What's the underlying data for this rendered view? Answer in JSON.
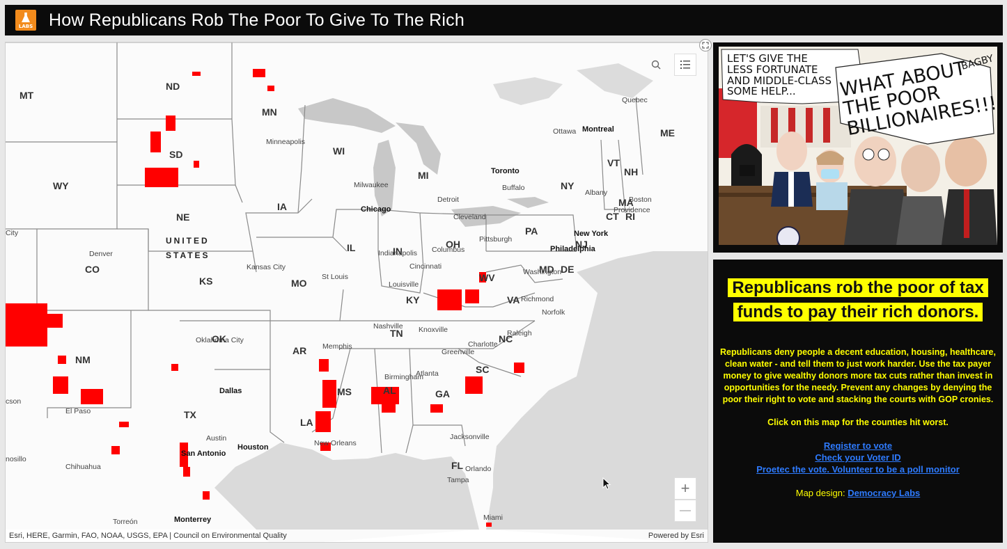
{
  "header": {
    "title": "How Republicans Rob The Poor To Give To The Rich",
    "logo_text": "LABS"
  },
  "map": {
    "country_label": [
      "UNITED",
      "STATES"
    ],
    "states": [
      "MT",
      "ND",
      "MN",
      "WY",
      "SD",
      "WI",
      "MI",
      "NY",
      "VT",
      "NH",
      "ME",
      "MA",
      "CT",
      "RI",
      "NJ",
      "NE",
      "IA",
      "PA",
      "IL",
      "IN",
      "OH",
      "MD",
      "DE",
      "CO",
      "KS",
      "MO",
      "KY",
      "WV",
      "VA",
      "OK",
      "AR",
      "TN",
      "NC",
      "SC",
      "NM",
      "TX",
      "MS",
      "AL",
      "GA",
      "LA",
      "FL"
    ],
    "cities": [
      "Quebec",
      "Ottawa",
      "Montreal",
      "Minneapolis",
      "Toronto",
      "Buffalo",
      "Albany",
      "Boston",
      "Providence",
      "Milwaukee",
      "Detroit",
      "Chicago",
      "Cleveland",
      "Pittsburgh",
      "New York",
      "Philadelphia",
      "Denver",
      "Kansas City",
      "Indianapolis",
      "Columbus",
      "Cincinnati",
      "St Louis",
      "Louisville",
      "Washington",
      "Richmond",
      "Norfolk",
      "Nashville",
      "Knoxville",
      "Raleigh",
      "Charlotte",
      "Greenville",
      "Oklahoma City",
      "Memphis",
      "Birmingham",
      "Atlanta",
      "Dallas",
      "El Paso",
      "Austin",
      "Houston",
      "San Antonio",
      "New Orleans",
      "Jacksonville",
      "Orlando",
      "Tampa",
      "Miami",
      "Chihuahua",
      "Torreón",
      "Monterrey",
      "City",
      "cson",
      "nosillo"
    ],
    "attribution": "Esri, HERE, Garmin, FAO, NOAA, USGS, EPA | Council on Environmental Quality",
    "powered_by": "Powered by Esri",
    "zoom_in": "+",
    "zoom_out": "—",
    "highlight_color": "#ff0000"
  },
  "cartoon": {
    "speech_left": "LET'S GIVE THE\nLESS FORTUNATE\nAND MIDDLE-CLASS\nSOME HELP...",
    "speech_right": "WHAT ABOUT\nTHE POOR\nBILLIONAIRES!!!",
    "credit": "BAGBY"
  },
  "panel": {
    "headline": "Republicans rob the poor of tax funds to pay their rich donors.",
    "body": "Republicans deny people a decent education, housing, healthcare, clean water - and tell them to just work harder. Use the tax payer money to give wealthy donors more tax cuts rather than invest in opportunities for the needy. Prevent any changes by denying the poor their right to vote and stacking the courts with GOP cronies.",
    "click": "Click on this map for the counties hit worst.",
    "links": [
      "Register to vote",
      "Check your Voter ID",
      "Proetec the vote. Volunteer to be a poll monitor"
    ],
    "design_label": "Map design: ",
    "design_link": "Democracy Labs"
  }
}
